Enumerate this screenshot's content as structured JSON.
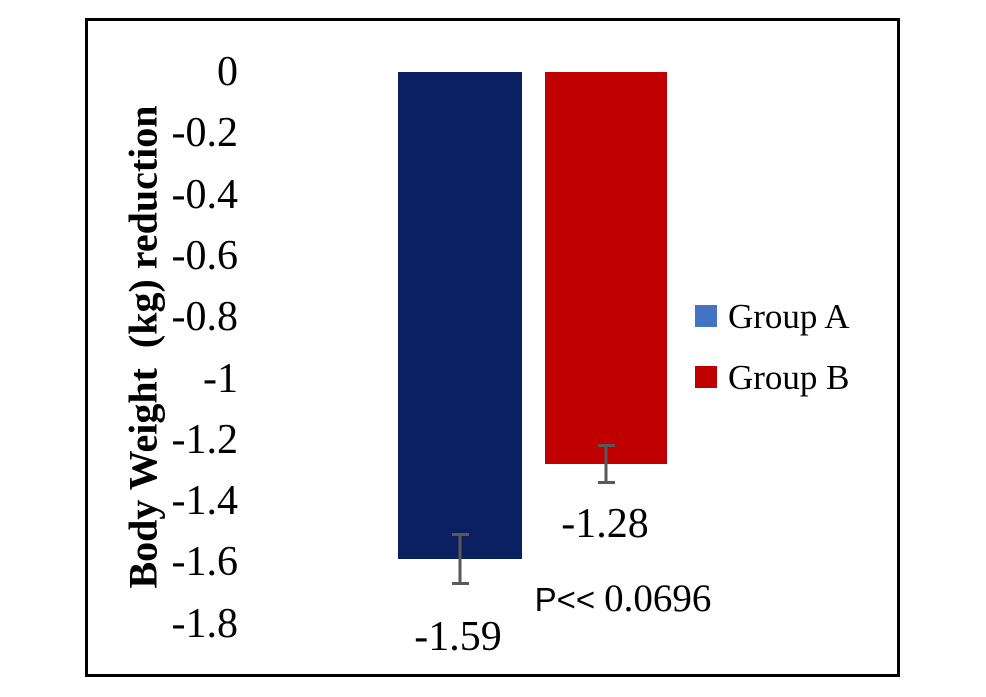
{
  "chart_data": {
    "type": "bar",
    "title": "",
    "ylabel": "Body Weight  (kg) reduction",
    "xlabel": "",
    "categories": [
      "Group A",
      "Group B"
    ],
    "bars": [
      {
        "name": "Group A",
        "value": -1.59,
        "error": 0.085,
        "color": "#0a2060",
        "label": "-1.59"
      },
      {
        "name": "Group B",
        "value": -1.28,
        "error": 0.065,
        "color": "#c00000",
        "label": "-1.28"
      }
    ],
    "yticks": [
      "0",
      "-0.2",
      "-0.4",
      "-0.6",
      "-0.8",
      "-1",
      "-1.2",
      "-1.4",
      "-1.6",
      "-1.8"
    ],
    "ylim": [
      0,
      -1.8
    ],
    "grid": false,
    "legend": {
      "position": "right",
      "entries": [
        {
          "label": "Group A",
          "color": "#4472c4"
        },
        {
          "label": "Group B",
          "color": "#c00000"
        }
      ]
    },
    "annotation": {
      "prefix": "P<<",
      "value": "0.0696",
      "text": "P<< 0.0696"
    },
    "error_bar_color": "#595959",
    "frame_color": "#000000",
    "background_color": "#ffffff"
  }
}
